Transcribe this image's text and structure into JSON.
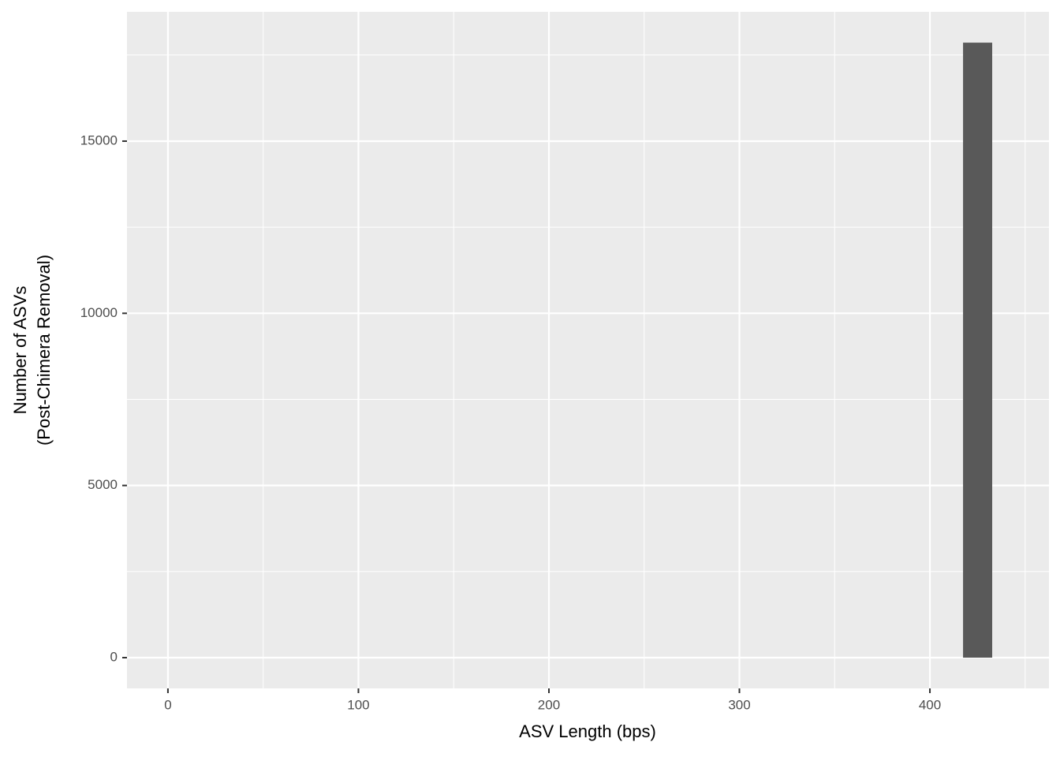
{
  "chart_data": {
    "type": "histogram",
    "xlabel": "ASV Length (bps)",
    "ylabel": [
      "Number of ASVs",
      "(Post-Chimera Removal)"
    ],
    "bins": [
      417.4,
      432.7
    ],
    "counts": [
      17860
    ],
    "color": "#595959",
    "xlim": [
      -21.5,
      462.5
    ],
    "ylim": [
      -893,
      18755
    ],
    "xticks": [
      0,
      100,
      200,
      300,
      400
    ],
    "yticks": [
      0,
      5000,
      10000,
      15000
    ],
    "xminor": [
      50,
      150,
      250,
      350,
      450
    ],
    "yminor": [
      2500,
      7500,
      12500,
      17500
    ],
    "grid": true
  }
}
